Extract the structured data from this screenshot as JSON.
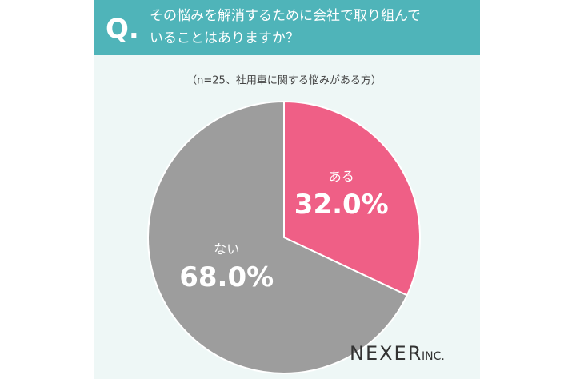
{
  "chart_data": {
    "type": "pie",
    "question_mark": "Q.",
    "title_lines": [
      "その悩みを解消するために会社で取り組んで",
      "いることはありますか？"
    ],
    "subtitle": "（n=25、社用車に関する悩みがある方）",
    "categories": [
      "ある",
      "ない"
    ],
    "values": [
      32.0,
      68.0
    ],
    "value_labels": [
      "32.0%",
      "68.0%"
    ],
    "colors": [
      "#ef5f86",
      "#9d9d9d"
    ],
    "logo": {
      "name": "NEXER",
      "suffix": "INC."
    }
  }
}
